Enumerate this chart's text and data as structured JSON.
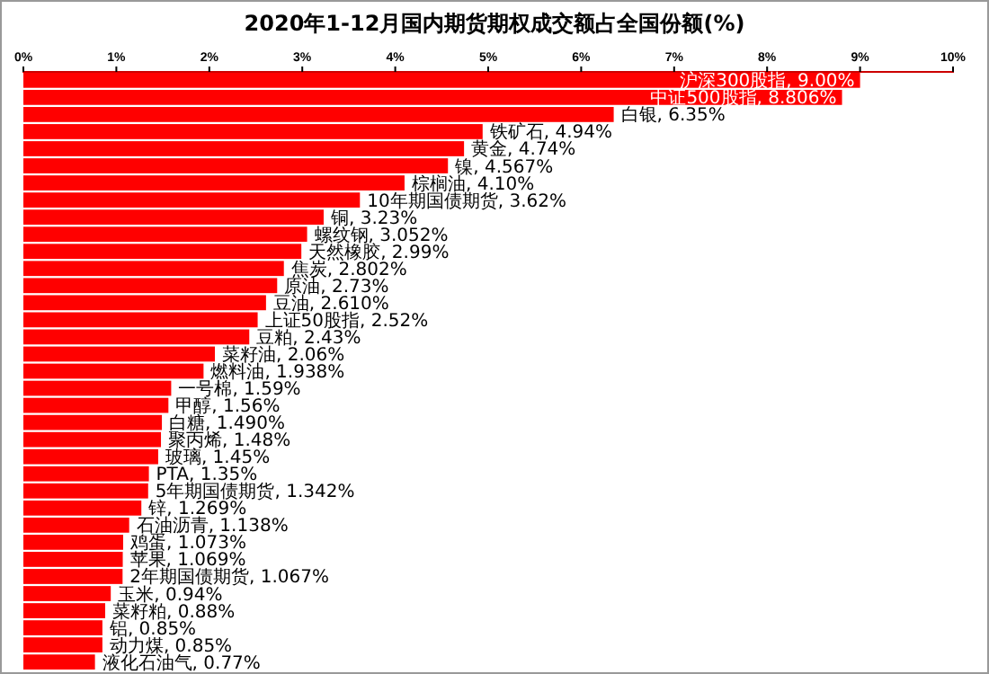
{
  "chart_data": {
    "type": "bar",
    "orientation": "horizontal",
    "title": "2020年1-12月国内期货期权成交额占全国份额(%)",
    "categories": [
      null,
      null,
      null,
      null,
      null,
      null,
      null,
      null,
      null,
      null,
      null,
      null,
      null,
      null,
      null,
      null,
      null,
      null,
      null,
      null,
      null,
      null,
      null,
      null,
      null,
      null,
      null,
      null,
      null,
      null,
      null,
      null,
      null,
      null,
      null
    ],
    "values": [
      9.0,
      8.806,
      6.35,
      4.94,
      4.74,
      4.567,
      4.1,
      3.62,
      3.23,
      3.052,
      2.99,
      2.802,
      2.73,
      2.61,
      2.52,
      2.43,
      2.06,
      1.938,
      1.59,
      1.56,
      1.49,
      1.48,
      1.45,
      1.35,
      1.342,
      1.269,
      1.138,
      1.073,
      1.069,
      1.067,
      0.94,
      0.88,
      0.85,
      0.85,
      0.77
    ],
    "value_labels": [
      "沪深300股指, 9.00%",
      "中证500股指, 8.806%",
      "白银, 6.35%",
      "铁矿石, 4.94%",
      "黄金, 4.74%",
      "镍, 4.567%",
      "棕榈油, 4.10%",
      "10年期国债期货, 3.62%",
      "铜, 3.23%",
      "螺纹钢, 3.052%",
      "天然橡胶, 2.99%",
      "焦炭, 2.802%",
      "原油, 2.73%",
      "豆油, 2.610%",
      "上证50股指, 2.52%",
      "豆粕, 2.43%",
      "菜籽油, 2.06%",
      "燃料油, 1.938%",
      "一号棉, 1.59%",
      "甲醇, 1.56%",
      "白糖, 1.490%",
      "聚丙烯, 1.48%",
      "玻璃, 1.45%",
      "PTA, 1.35%",
      "5年期国债期货, 1.342%",
      "锌, 1.269%",
      "石油沥青, 1.138%",
      "鸡蛋, 1.073%",
      "苹果, 1.069%",
      "2年期国债期货, 1.067%",
      "玉米, 0.94%",
      "菜籽粕, 0.88%",
      "铝, 0.85%",
      "动力煤, 0.85%",
      "液化石油气, 0.77%"
    ],
    "color": "#ff0000",
    "xlim": [
      0,
      10
    ],
    "xticks": [
      {
        "value": 0,
        "label": "0%"
      },
      {
        "value": 1,
        "label": "1%"
      },
      {
        "value": 2,
        "label": "2%"
      },
      {
        "value": 3,
        "label": "3%"
      },
      {
        "value": 4,
        "label": "4%"
      },
      {
        "value": 5,
        "label": "5%"
      },
      {
        "value": 6,
        "label": "6%"
      },
      {
        "value": 7,
        "label": "7%"
      },
      {
        "value": 8,
        "label": "8%"
      },
      {
        "value": 9,
        "label": "9%"
      },
      {
        "value": 10,
        "label": "10%"
      }
    ],
    "grid": false
  }
}
